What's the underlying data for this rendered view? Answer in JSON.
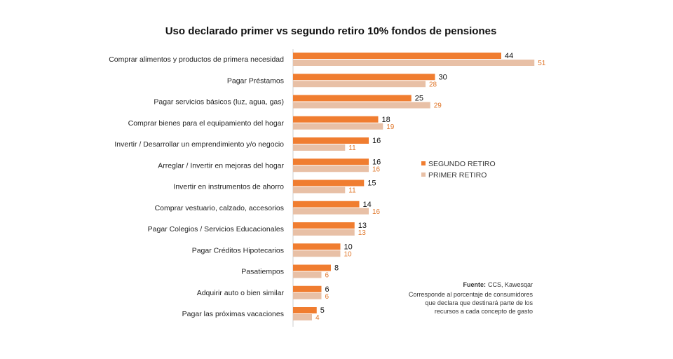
{
  "chart_data": {
    "type": "bar",
    "orientation": "horizontal",
    "title": "Uso declarado primer vs segundo retiro 10% fondos de pensiones",
    "categories": [
      "Comprar alimentos y productos de primera necesidad",
      "Pagar Préstamos",
      "Pagar servicios básicos (luz, agua, gas)",
      "Comprar bienes para el equipamiento del hogar",
      "Invertir / Desarrollar un emprendimiento y/o negocio",
      "Arreglar / Invertir en mejoras del hogar",
      "Invertir en instrumentos de ahorro",
      "Comprar vestuario, calzado, accesorios",
      "Pagar Colegios / Servicios Educacionales",
      "Pagar Créditos Hipotecarios",
      "Pasatiempos",
      "Adquirir auto o bien similar",
      "Pagar las próximas vacaciones"
    ],
    "series": [
      {
        "name": "SEGUNDO RETIRO",
        "color": "#f07d30",
        "values": [
          44,
          30,
          25,
          18,
          16,
          16,
          15,
          14,
          13,
          10,
          8,
          6,
          5
        ]
      },
      {
        "name": "PRIMER RETIRO",
        "color": "#e8c0a6",
        "values": [
          51,
          28,
          29,
          19,
          11,
          16,
          11,
          16,
          13,
          10,
          6,
          6,
          4
        ]
      }
    ],
    "xlim": [
      0,
      55
    ],
    "legend": "right-middle",
    "grid": false
  },
  "source": {
    "label": "Fuente:",
    "text": "CCS, Kawesqar",
    "note_lines": [
      "Corresponde al porcentaje de consumidores",
      "que declara que destinará parte de los",
      "recursos a cada concepto de gasto"
    ]
  }
}
